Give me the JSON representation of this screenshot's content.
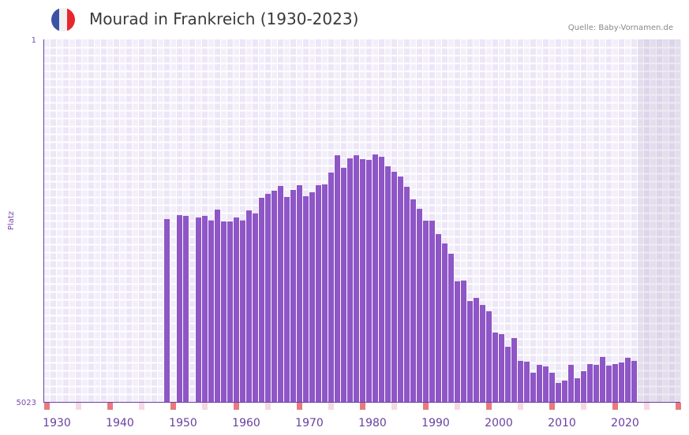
{
  "header": {
    "title": "Mourad in Frankreich (1930-2023)",
    "source": "Quelle: Baby-Vornamen.de",
    "flag_icon": "france-flag-icon",
    "flag_colors": [
      "#3a53a4",
      "#f1f1f1",
      "#e8262d"
    ]
  },
  "colors": {
    "bar": "#8e56c6",
    "axis": "#6a3fa0",
    "tick_red": "#e87a7e",
    "tick_pink": "#f5d8e0",
    "future": "#e2dcec"
  },
  "chart_data": {
    "type": "bar",
    "title": "Mourad in Frankreich (1930-2023)",
    "ylabel": "Platz",
    "xlabel": "",
    "ylim": [
      5023,
      1
    ],
    "y_tick_labels": [
      "1",
      "5023"
    ],
    "x_tick_labels": [
      "1930",
      "1940",
      "1950",
      "1960",
      "1970",
      "1980",
      "1990",
      "2000",
      "2010",
      "2020"
    ],
    "xlim": [
      1928,
      2028
    ],
    "future_from": 2022,
    "grid": true,
    "x": [
      1947,
      1949,
      1950,
      1952,
      1953,
      1954,
      1955,
      1956,
      1957,
      1958,
      1959,
      1960,
      1961,
      1962,
      1963,
      1964,
      1965,
      1966,
      1967,
      1968,
      1969,
      1970,
      1971,
      1972,
      1973,
      1974,
      1975,
      1976,
      1977,
      1978,
      1979,
      1980,
      1981,
      1982,
      1983,
      1984,
      1985,
      1986,
      1987,
      1988,
      1989,
      1990,
      1991,
      1992,
      1993,
      1994,
      1995,
      1996,
      1997,
      1998,
      1999,
      2000,
      2001,
      2002,
      2003,
      2004,
      2005,
      2006,
      2007,
      2008,
      2009,
      2010,
      2011,
      2012,
      2013,
      2014,
      2015,
      2016,
      2017,
      2018,
      2019,
      2020,
      2021
    ],
    "values": [
      2490,
      2436,
      2446,
      2468,
      2446,
      2509,
      2359,
      2523,
      2523,
      2468,
      2509,
      2370,
      2410,
      2195,
      2141,
      2097,
      2032,
      2184,
      2086,
      2021,
      2174,
      2119,
      2021,
      2010,
      1846,
      1606,
      1780,
      1649,
      1606,
      1660,
      1671,
      1595,
      1628,
      1759,
      1835,
      1901,
      2043,
      2217,
      2348,
      2512,
      2512,
      2698,
      2828,
      2970,
      3352,
      3342,
      3626,
      3582,
      3680,
      3767,
      4062,
      4084,
      4259,
      4139,
      4455,
      4466,
      4619,
      4510,
      4532,
      4619,
      4761,
      4728,
      4510,
      4695,
      4597,
      4499,
      4510,
      4400,
      4520,
      4499,
      4477,
      4411,
      4455
    ]
  }
}
